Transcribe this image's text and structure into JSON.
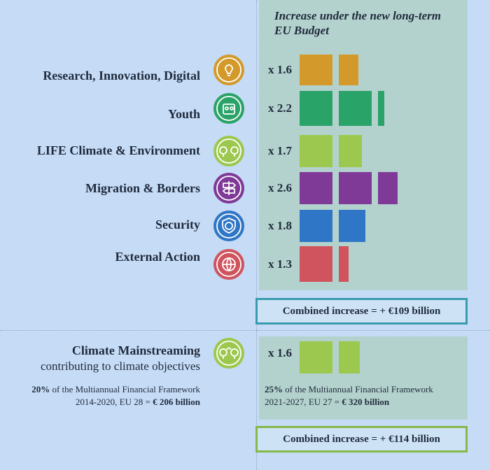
{
  "chart_data": {
    "type": "bar",
    "title": "Increase under the new long-term EU Budget",
    "categories": [
      "Research, Innovation, Digital",
      "Youth",
      "LIFE Climate & Environment",
      "Migration & Borders",
      "Security",
      "External Action"
    ],
    "values": [
      1.6,
      2.2,
      1.7,
      2.6,
      1.8,
      1.3
    ],
    "value_labels": [
      "x 1.6",
      "x 2.2",
      "x 1.7",
      "x 2.6",
      "x 1.8",
      "x 1.3"
    ],
    "colors": [
      "#d39a2b",
      "#2aa368",
      "#9cc84f",
      "#7f3a98",
      "#2f76c6",
      "#d0545e"
    ],
    "icons": [
      "lightbulb-icon",
      "youth-icon",
      "tree-icon",
      "signpost-icon",
      "shield-globe-icon",
      "globe-icon"
    ],
    "combined": "Combined increase = + €109 billion"
  },
  "climate": {
    "title": "Climate Mainstreaming",
    "subtitle": "contributing to climate objectives",
    "multiplier": "x 1.6",
    "value": 1.6,
    "color": "#9cc84f",
    "icon": "tree-icon",
    "old_pct": "20%",
    "old_text_1": " of the Multiannual Financial Framework",
    "old_text_2": "2014-2020, EU 28 = ",
    "old_amount": "€ 206 billion",
    "new_pct": "25%",
    "new_text_1": " of the Multiannual Financial Framework",
    "new_text_2": "2021-2027, EU 27 = ",
    "new_amount": "€ 320 billion",
    "combined": "Combined increase = + €114 billion"
  },
  "accent": {
    "teal_border": "#3a9bb0",
    "green_border": "#86b84a"
  }
}
